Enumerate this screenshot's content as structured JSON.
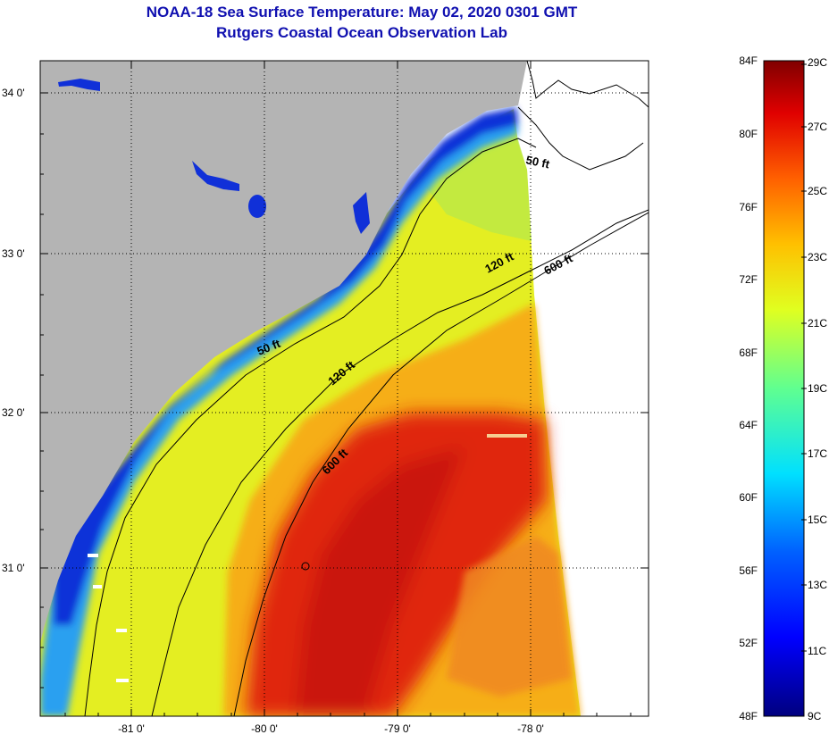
{
  "header": {
    "title": "NOAA-18 Sea Surface Temperature:  May 02, 2020 0301 GMT",
    "subtitle": "Rutgers Coastal Ocean Observation Lab"
  },
  "map": {
    "lat_labels": [
      "34 0'",
      "33 0'",
      "32 0'",
      "31 0'"
    ],
    "lon_labels": [
      "-81 0'",
      "-80 0'",
      "-79 0'",
      "-78 0'"
    ],
    "contours": {
      "c50a": "50 ft",
      "c50b": "50 ft",
      "c120a": "120 ft",
      "c120b": "120 ft",
      "c600a": "600 ft",
      "c600b": "600 ft"
    },
    "colors": {
      "land": "#b4b4b4",
      "coastal_cold": "#1030d8",
      "shelf_yellow": "#e8f020",
      "gulf_stream": "#d82010"
    }
  },
  "colorbar": {
    "fahrenheit": [
      "84F",
      "80F",
      "76F",
      "72F",
      "68F",
      "64F",
      "60F",
      "56F",
      "52F",
      "48F"
    ],
    "celsius": [
      "29C",
      "27C",
      "25C",
      "23C",
      "21C",
      "19C",
      "17C",
      "15C",
      "13C",
      "11C",
      "9C"
    ]
  }
}
